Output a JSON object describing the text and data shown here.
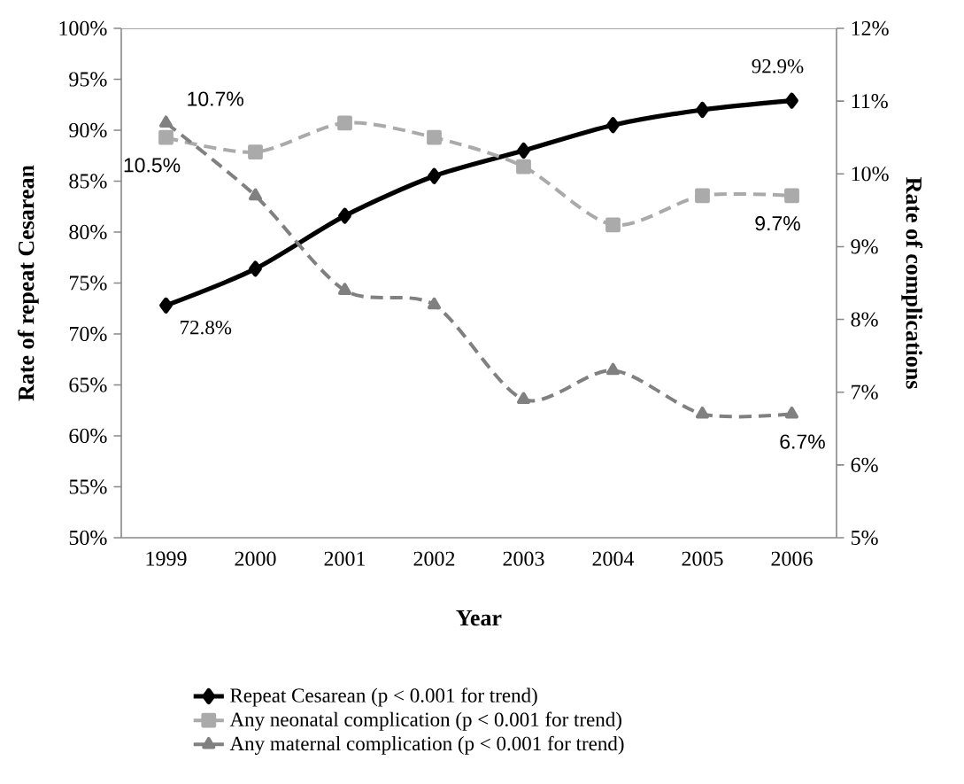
{
  "chart_data": {
    "type": "line",
    "xlabel": "Year",
    "ylabel": "Rate of repeat Cesarean",
    "y2label": "Rate of complications",
    "categories": [
      "1999",
      "2000",
      "2001",
      "2002",
      "2003",
      "2004",
      "2005",
      "2006"
    ],
    "ylim": [
      50,
      100
    ],
    "yticks": [
      {
        "value": 50,
        "label": "50%"
      },
      {
        "value": 55,
        "label": "55%"
      },
      {
        "value": 60,
        "label": "60%"
      },
      {
        "value": 65,
        "label": "65%"
      },
      {
        "value": 70,
        "label": "70%"
      },
      {
        "value": 75,
        "label": "75%"
      },
      {
        "value": 80,
        "label": "80%"
      },
      {
        "value": 85,
        "label": "85%"
      },
      {
        "value": 90,
        "label": "90%"
      },
      {
        "value": 95,
        "label": "95%"
      },
      {
        "value": 100,
        "label": "100%"
      }
    ],
    "y2lim": [
      5,
      12
    ],
    "y2ticks": [
      {
        "value": 5,
        "label": "5%"
      },
      {
        "value": 6,
        "label": "6%"
      },
      {
        "value": 7,
        "label": "7%"
      },
      {
        "value": 8,
        "label": "8%"
      },
      {
        "value": 9,
        "label": "9%"
      },
      {
        "value": 10,
        "label": "10%"
      },
      {
        "value": 11,
        "label": "11%"
      },
      {
        "value": 12,
        "label": "12%"
      }
    ],
    "grid": false,
    "legend": "bottom",
    "series": [
      {
        "name": "Repeat Cesarean (p < 0.001 for trend)",
        "color": "#000000",
        "marker": "diamond",
        "line_style": "solid",
        "values": [
          72.8,
          76.4,
          81.6,
          85.5,
          88.0,
          90.5,
          92.0,
          92.9
        ],
        "value_labels": [
          "72.8%",
          null,
          null,
          null,
          null,
          null,
          null,
          "92.9%"
        ]
      },
      {
        "name": "Any neonatal complication  (p < 0.001 for trend)",
        "color": "#aaaaaa",
        "marker": "square",
        "line_style": "dashed",
        "axis": "y2",
        "values": [
          10.5,
          10.3,
          10.7,
          10.5,
          10.1,
          9.3,
          9.7,
          9.7
        ],
        "value_labels": [
          "10.5%",
          null,
          null,
          null,
          null,
          null,
          null,
          "9.7%"
        ]
      },
      {
        "name": "Any maternal complication  (p < 0.001 for trend)",
        "color": "#808080",
        "marker": "triangle",
        "line_style": "dashed",
        "axis": "y2",
        "values": [
          10.7,
          9.7,
          8.4,
          8.2,
          6.9,
          7.3,
          6.7,
          6.7
        ],
        "value_labels": [
          "10.7%",
          null,
          null,
          null,
          null,
          null,
          null,
          "6.7%"
        ]
      }
    ]
  }
}
